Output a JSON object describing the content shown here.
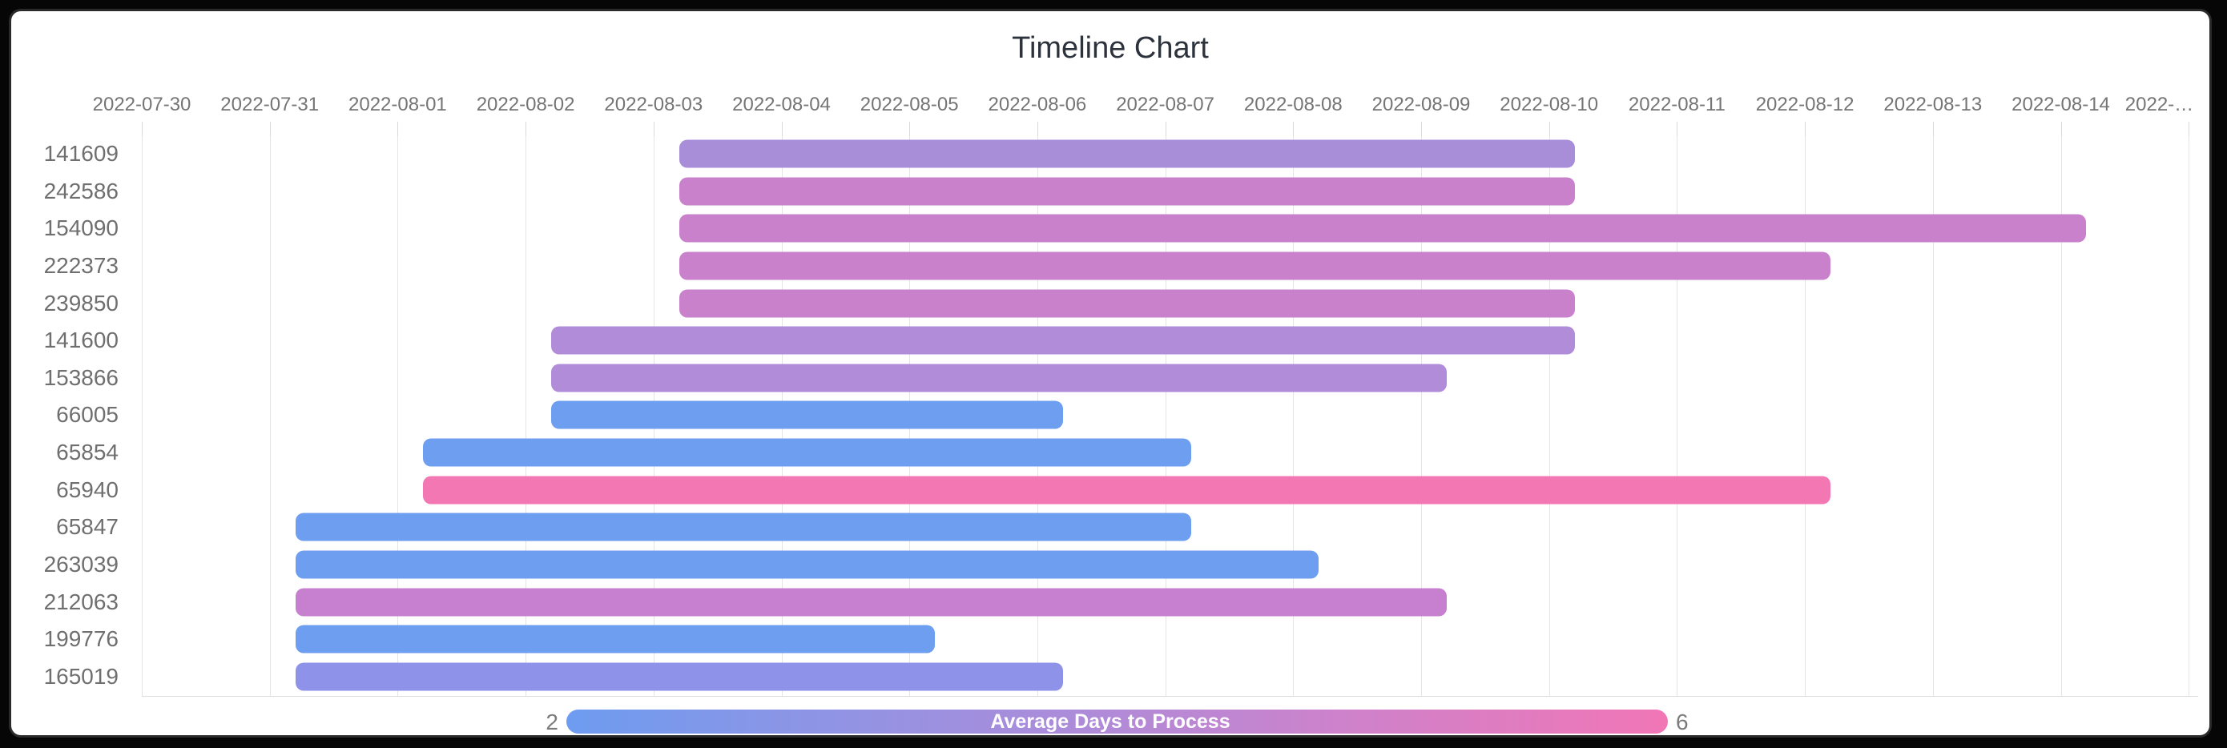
{
  "chart_data": {
    "type": "timeline",
    "title": "Timeline Chart",
    "x_axis": {
      "unit": "date",
      "grid": true,
      "tick_labels": [
        "2022-07-30",
        "2022-07-31",
        "2022-08-01",
        "2022-08-02",
        "2022-08-03",
        "2022-08-04",
        "2022-08-05",
        "2022-08-06",
        "2022-08-07",
        "2022-08-08",
        "2022-08-09",
        "2022-08-10",
        "2022-08-11",
        "2022-08-12",
        "2022-08-13",
        "2022-08-14",
        "2022-…"
      ],
      "range_days_from_first_tick": [
        0,
        16
      ]
    },
    "y_axis": {
      "categories": [
        "141609",
        "242586",
        "154090",
        "222373",
        "239850",
        "141600",
        "153866",
        "66005",
        "65854",
        "65940",
        "65847",
        "263039",
        "212063",
        "199776",
        "165019"
      ]
    },
    "rows": [
      {
        "id": "141609",
        "start": "2022-08-03",
        "end": "2022-08-10",
        "start_day": 4.2,
        "end_day": 11.2,
        "color": "#a88ed9"
      },
      {
        "id": "242586",
        "start": "2022-08-03",
        "end": "2022-08-10",
        "start_day": 4.2,
        "end_day": 11.2,
        "color": "#c981cc"
      },
      {
        "id": "154090",
        "start": "2022-08-03",
        "end": "2022-08-14",
        "start_day": 4.2,
        "end_day": 15.2,
        "color": "#c981cc"
      },
      {
        "id": "222373",
        "start": "2022-08-03",
        "end": "2022-08-12",
        "start_day": 4.2,
        "end_day": 13.2,
        "color": "#c981cc"
      },
      {
        "id": "239850",
        "start": "2022-08-03",
        "end": "2022-08-10",
        "start_day": 4.2,
        "end_day": 11.2,
        "color": "#c981cc"
      },
      {
        "id": "141600",
        "start": "2022-08-02",
        "end": "2022-08-10",
        "start_day": 3.2,
        "end_day": 11.2,
        "color": "#b08cd9"
      },
      {
        "id": "153866",
        "start": "2022-08-02",
        "end": "2022-08-09",
        "start_day": 3.2,
        "end_day": 10.2,
        "color": "#b08cd9"
      },
      {
        "id": "66005",
        "start": "2022-08-02",
        "end": "2022-08-06",
        "start_day": 3.2,
        "end_day": 7.2,
        "color": "#6e9ef0"
      },
      {
        "id": "65854",
        "start": "2022-08-01",
        "end": "2022-08-07",
        "start_day": 2.2,
        "end_day": 8.2,
        "color": "#6e9ef0"
      },
      {
        "id": "65940",
        "start": "2022-08-01",
        "end": "2022-08-12",
        "start_day": 2.2,
        "end_day": 13.2,
        "color": "#f277b3"
      },
      {
        "id": "65847",
        "start": "2022-07-31",
        "end": "2022-08-07",
        "start_day": 1.2,
        "end_day": 8.2,
        "color": "#6e9ef0"
      },
      {
        "id": "263039",
        "start": "2022-07-31",
        "end": "2022-08-08",
        "start_day": 1.2,
        "end_day": 9.2,
        "color": "#6e9ef0"
      },
      {
        "id": "212063",
        "start": "2022-07-31",
        "end": "2022-08-09",
        "start_day": 1.2,
        "end_day": 10.2,
        "color": "#c780cf"
      },
      {
        "id": "199776",
        "start": "2022-07-31",
        "end": "2022-08-05",
        "start_day": 1.2,
        "end_day": 6.2,
        "color": "#6e9ef0"
      },
      {
        "id": "165019",
        "start": "2022-07-31",
        "end": "2022-08-06",
        "start_day": 1.2,
        "end_day": 7.2,
        "color": "#8e92e8"
      }
    ],
    "legend": {
      "label": "Average Days to Process",
      "min": "2",
      "max": "6",
      "gradient": [
        "#6d9cf0",
        "#8b95e6",
        "#ab8cda",
        "#cd82cb",
        "#f176b6"
      ],
      "position": "bottom"
    },
    "colors": {
      "background": "#ffffff",
      "surround": "#060606",
      "title_text": "#2d333c",
      "axis_text": "#757575",
      "category_text": "#6f6f6f",
      "gridline": "#e4e4e4"
    }
  }
}
